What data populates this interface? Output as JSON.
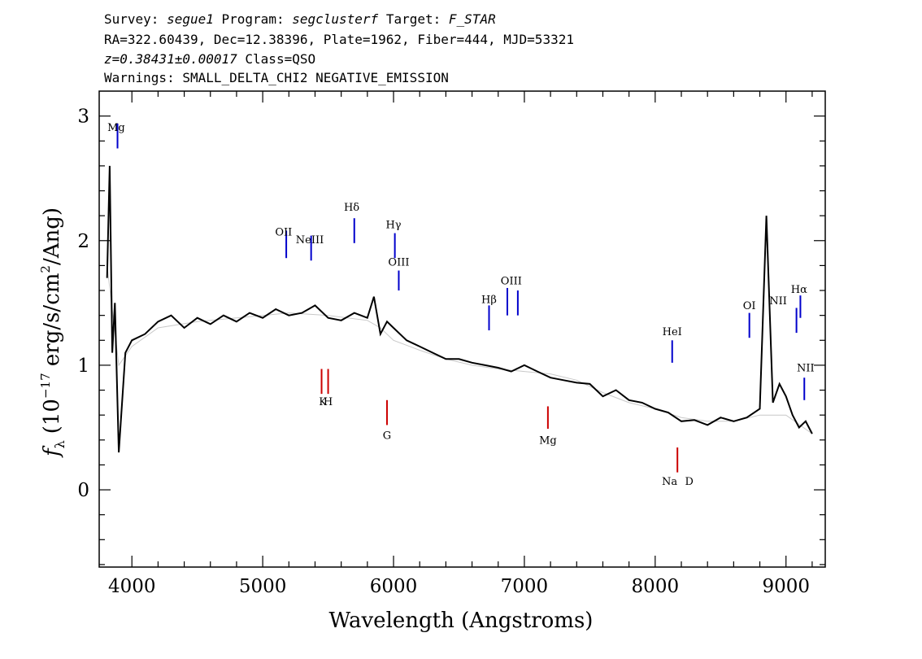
{
  "header": {
    "line1": {
      "survey_label": "Survey:",
      "survey": "segue1",
      "program_label": "Program:",
      "program": "segclusterf",
      "target_label": "Target:",
      "target": "F_STAR"
    },
    "line2": "RA=322.60439, Dec=12.38396, Plate=1962, Fiber=444, MJD=53321",
    "line3": {
      "redshift": "z=0.38431±0.00017",
      "class": "Class=QSO"
    },
    "line4": "Warnings: SMALL_DELTA_CHI2 NEGATIVE_EMISSION"
  },
  "chart_data": {
    "type": "line",
    "xlabel": "Wavelength (Angstroms)",
    "ylabel": "f_λ (10^-17 erg/s/cm^2/Ang)",
    "ylabel_parts": {
      "f": "f",
      "lambda": "λ",
      "open": "(10",
      "exp1": "−17",
      "mid": " erg/s/cm",
      "exp2": "2",
      "close": "/Ang)"
    },
    "xlim": [
      3750,
      9300
    ],
    "ylim": [
      -0.62,
      3.2
    ],
    "xticks": [
      4000,
      5000,
      6000,
      7000,
      8000,
      9000
    ],
    "xtick_labels": [
      "4000",
      "5000",
      "6000",
      "7000",
      "8000",
      "9000"
    ],
    "yticks": [
      0,
      1,
      2,
      3
    ],
    "ytick_labels": [
      "0",
      "1",
      "2",
      "3"
    ],
    "series": [
      {
        "color": "#c8c8c8",
        "x": [
          3810,
          3900,
          4000,
          4200,
          4500,
          4800,
          5000,
          5200,
          5500,
          5800,
          5900,
          6000,
          6200,
          6400,
          6600,
          6800,
          7000,
          7200,
          7400,
          7600,
          7800,
          8000,
          8200,
          8400,
          8600,
          8800,
          9000,
          9200
        ],
        "y": [
          1.8,
          1.0,
          1.15,
          1.3,
          1.35,
          1.38,
          1.4,
          1.42,
          1.4,
          1.36,
          1.3,
          1.2,
          1.12,
          1.05,
          1.0,
          0.97,
          0.95,
          0.93,
          0.88,
          0.78,
          0.7,
          0.65,
          0.58,
          0.55,
          0.55,
          0.6,
          0.6,
          0.45
        ]
      },
      {
        "color": "#000000",
        "x": [
          3810,
          3830,
          3850,
          3870,
          3900,
          3950,
          4000,
          4100,
          4200,
          4300,
          4400,
          4500,
          4600,
          4700,
          4800,
          4900,
          5000,
          5100,
          5200,
          5300,
          5400,
          5500,
          5600,
          5700,
          5800,
          5850,
          5900,
          5950,
          6000,
          6100,
          6200,
          6300,
          6400,
          6500,
          6600,
          6700,
          6800,
          6900,
          7000,
          7100,
          7200,
          7300,
          7400,
          7500,
          7600,
          7700,
          7800,
          7900,
          8000,
          8100,
          8200,
          8300,
          8400,
          8500,
          8600,
          8700,
          8800,
          8850,
          8900,
          8950,
          9000,
          9050,
          9100,
          9150,
          9200
        ],
        "y": [
          1.7,
          2.6,
          1.1,
          1.5,
          0.3,
          1.1,
          1.2,
          1.25,
          1.35,
          1.4,
          1.3,
          1.38,
          1.33,
          1.4,
          1.35,
          1.42,
          1.38,
          1.45,
          1.4,
          1.42,
          1.48,
          1.38,
          1.36,
          1.42,
          1.38,
          1.55,
          1.25,
          1.35,
          1.3,
          1.2,
          1.15,
          1.1,
          1.05,
          1.05,
          1.02,
          1.0,
          0.98,
          0.95,
          1.0,
          0.95,
          0.9,
          0.88,
          0.86,
          0.85,
          0.75,
          0.8,
          0.72,
          0.7,
          0.65,
          0.62,
          0.55,
          0.56,
          0.52,
          0.58,
          0.55,
          0.58,
          0.65,
          2.2,
          0.7,
          0.85,
          0.75,
          0.6,
          0.5,
          0.55,
          0.45
        ]
      }
    ],
    "line_labels": [
      {
        "text": "Mg",
        "x": 3880,
        "y": 2.88,
        "color": "#0000cc"
      },
      {
        "text": "OII",
        "x": 5160,
        "y": 2.04,
        "color": "#0000cc"
      },
      {
        "text": "NeIII",
        "x": 5360,
        "y": 1.98,
        "color": "#0000cc"
      },
      {
        "text": "Hδ",
        "x": 5680,
        "y": 2.24,
        "color": "#0000cc"
      },
      {
        "text": "Hγ",
        "x": 6000,
        "y": 2.1,
        "color": "#0000cc"
      },
      {
        "text": "OIII",
        "x": 6040,
        "y": 1.8,
        "color": "#0000cc"
      },
      {
        "text": "Hβ",
        "x": 6730,
        "y": 1.5,
        "color": "#0000cc"
      },
      {
        "text": "OIII",
        "x": 6900,
        "y": 1.65,
        "color": "#0000cc"
      },
      {
        "text": "HeI",
        "x": 8130,
        "y": 1.24,
        "color": "#0000cc"
      },
      {
        "text": "OI",
        "x": 8720,
        "y": 1.45,
        "color": "#0000cc"
      },
      {
        "text": "NII",
        "x": 8940,
        "y": 1.49,
        "color": "#0000cc"
      },
      {
        "text": "Hα",
        "x": 9100,
        "y": 1.58,
        "color": "#0000cc"
      },
      {
        "text": "NII",
        "x": 9150,
        "y": 0.95,
        "color": "#0000cc"
      },
      {
        "text": "K",
        "x": 5460,
        "y": 0.68,
        "color": "#cc0000"
      },
      {
        "text": "H",
        "x": 5500,
        "y": 0.68,
        "color": "#cc0000"
      },
      {
        "text": "G",
        "x": 5950,
        "y": 0.41,
        "color": "#cc0000"
      },
      {
        "text": "Mg",
        "x": 7180,
        "y": 0.37,
        "color": "#cc0000"
      },
      {
        "text": "Na",
        "x": 8110,
        "y": 0.04,
        "color": "#cc0000"
      },
      {
        "text": "D",
        "x": 8260,
        "y": 0.04,
        "color": "#cc0000"
      }
    ],
    "line_markers": [
      {
        "x": 3890,
        "y0": 2.74,
        "y1": 2.94,
        "color": "#0000cc"
      },
      {
        "x": 5180,
        "y0": 1.86,
        "y1": 2.08,
        "color": "#0000cc"
      },
      {
        "x": 5370,
        "y0": 1.84,
        "y1": 2.04,
        "color": "#0000cc"
      },
      {
        "x": 5700,
        "y0": 1.98,
        "y1": 2.18,
        "color": "#0000cc"
      },
      {
        "x": 6010,
        "y0": 1.86,
        "y1": 2.06,
        "color": "#0000cc"
      },
      {
        "x": 6040,
        "y0": 1.6,
        "y1": 1.76,
        "color": "#0000cc"
      },
      {
        "x": 6730,
        "y0": 1.28,
        "y1": 1.48,
        "color": "#0000cc"
      },
      {
        "x": 6870,
        "y0": 1.4,
        "y1": 1.62,
        "color": "#0000cc"
      },
      {
        "x": 6950,
        "y0": 1.4,
        "y1": 1.6,
        "color": "#0000cc"
      },
      {
        "x": 8130,
        "y0": 1.02,
        "y1": 1.2,
        "color": "#0000cc"
      },
      {
        "x": 8720,
        "y0": 1.22,
        "y1": 1.42,
        "color": "#0000cc"
      },
      {
        "x": 9080,
        "y0": 1.26,
        "y1": 1.46,
        "color": "#0000cc"
      },
      {
        "x": 9110,
        "y0": 1.38,
        "y1": 1.56,
        "color": "#0000cc"
      },
      {
        "x": 9140,
        "y0": 0.72,
        "y1": 0.9,
        "color": "#0000cc"
      },
      {
        "x": 5450,
        "y0": 0.77,
        "y1": 0.97,
        "color": "#cc0000"
      },
      {
        "x": 5500,
        "y0": 0.77,
        "y1": 0.97,
        "color": "#cc0000"
      },
      {
        "x": 5950,
        "y0": 0.52,
        "y1": 0.72,
        "color": "#cc0000"
      },
      {
        "x": 7180,
        "y0": 0.49,
        "y1": 0.67,
        "color": "#cc0000"
      },
      {
        "x": 8170,
        "y0": 0.14,
        "y1": 0.34,
        "color": "#cc0000"
      }
    ]
  }
}
